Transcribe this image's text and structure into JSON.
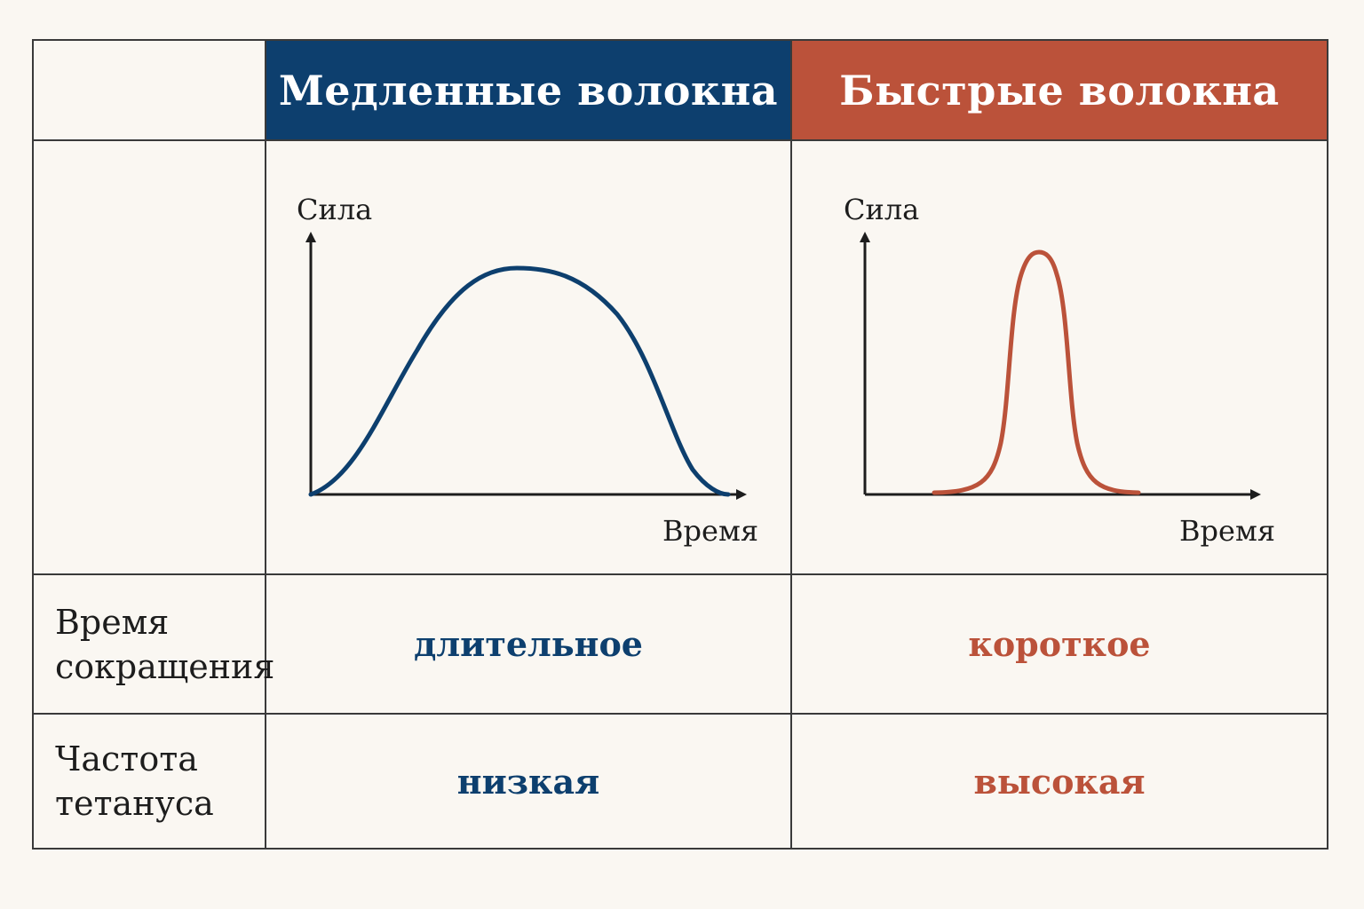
{
  "header": {
    "empty": "",
    "slow_title": "Медленные волокна",
    "fast_title": "Быстрые волокна"
  },
  "charts": {
    "slow": {
      "ylabel": "Сила",
      "xlabel": "Время",
      "color": "#0d3f6e",
      "shape": "broad plateau curve"
    },
    "fast": {
      "ylabel": "Сила",
      "xlabel": "Время",
      "color": "#bb523a",
      "shape": "narrow peak curve"
    }
  },
  "rows": [
    {
      "label_line1": "Время",
      "label_line2": "сокращения",
      "slow": "длительное",
      "fast": "короткое"
    },
    {
      "label_line1": "Частота",
      "label_line2": "тетануса",
      "slow": "низкая",
      "fast": "высокая"
    }
  ],
  "colors": {
    "slow": "#0d3f6e",
    "fast": "#bb523a",
    "background": "#faf7f2",
    "grid": "#3a3a3a"
  }
}
